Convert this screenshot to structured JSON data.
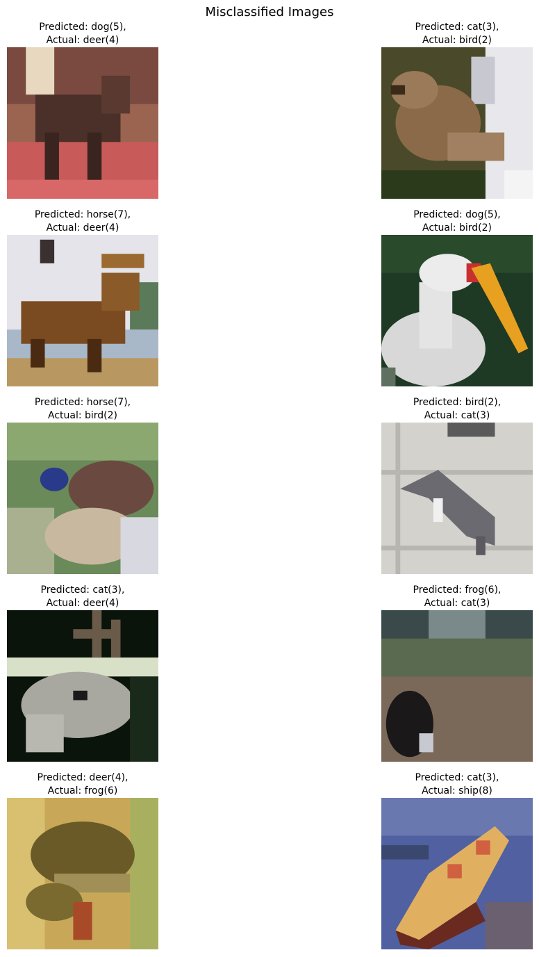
{
  "figure": {
    "title": "Misclassified Images"
  },
  "items": [
    {
      "predicted_line": "Predicted: dog(5),",
      "actual_line": "Actual: deer(4)",
      "subject": "deer",
      "predicted": "dog",
      "predicted_id": 5,
      "actual": "deer",
      "actual_id": 4
    },
    {
      "predicted_line": "Predicted: cat(3),",
      "actual_line": "Actual: bird(2)",
      "subject": "bird",
      "predicted": "cat",
      "predicted_id": 3,
      "actual": "bird",
      "actual_id": 2
    },
    {
      "predicted_line": "Predicted: horse(7),",
      "actual_line": "Actual: deer(4)",
      "subject": "moose",
      "predicted": "horse",
      "predicted_id": 7,
      "actual": "deer",
      "actual_id": 4
    },
    {
      "predicted_line": "Predicted: dog(5),",
      "actual_line": "Actual: bird(2)",
      "subject": "stork",
      "predicted": "dog",
      "predicted_id": 5,
      "actual": "bird",
      "actual_id": 2
    },
    {
      "predicted_line": "Predicted: horse(7),",
      "actual_line": "Actual: bird(2)",
      "subject": "bird",
      "predicted": "horse",
      "predicted_id": 7,
      "actual": "bird",
      "actual_id": 2
    },
    {
      "predicted_line": "Predicted: bird(2),",
      "actual_line": "Actual: cat(3)",
      "subject": "cat",
      "predicted": "bird",
      "predicted_id": 2,
      "actual": "cat",
      "actual_id": 3
    },
    {
      "predicted_line": "Predicted: cat(3),",
      "actual_line": "Actual: deer(4)",
      "subject": "deer",
      "predicted": "cat",
      "predicted_id": 3,
      "actual": "deer",
      "actual_id": 4
    },
    {
      "predicted_line": "Predicted: frog(6),",
      "actual_line": "Actual: cat(3)",
      "subject": "cat",
      "predicted": "frog",
      "predicted_id": 6,
      "actual": "cat",
      "actual_id": 3
    },
    {
      "predicted_line": "Predicted: deer(4),",
      "actual_line": "Actual: frog(6)",
      "subject": "frog",
      "predicted": "deer",
      "predicted_id": 4,
      "actual": "frog",
      "actual_id": 6
    },
    {
      "predicted_line": "Predicted: cat(3),",
      "actual_line": "Actual: ship(8)",
      "subject": "boat",
      "predicted": "cat",
      "predicted_id": 3,
      "actual": "ship",
      "actual_id": 8
    }
  ],
  "colors": {
    "background": "#ffffff",
    "text": "#000000"
  }
}
